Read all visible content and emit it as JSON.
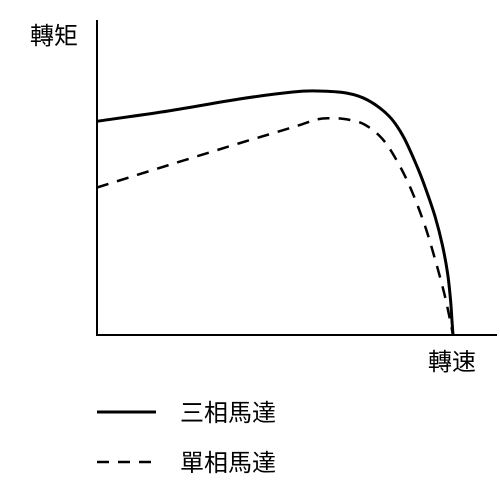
{
  "chart_data": {
    "type": "line",
    "xlabel": "轉速",
    "ylabel": "轉矩",
    "xlim": [
      0,
      100
    ],
    "ylim": [
      0,
      100
    ],
    "grid": false,
    "legend_position": "bottom-left",
    "series": [
      {
        "name": "三相馬達",
        "style": "solid",
        "color": "#000000",
        "x": [
          0,
          20,
          40,
          55,
          62,
          70,
          76,
          82,
          86,
          90,
          92.5,
          95,
          97,
          98.5,
          99.3,
          99.7,
          100
        ],
        "y": [
          85.5,
          89.6,
          94.4,
          97.2,
          97.6,
          96.8,
          94.0,
          87.6,
          79.5,
          67.1,
          57.8,
          47.2,
          36.1,
          24.5,
          14.1,
          6.0,
          0
        ]
      },
      {
        "name": "單相馬達",
        "style": "dashed",
        "color": "#000000",
        "x": [
          0,
          20,
          40,
          55,
          62,
          66,
          70,
          75,
          80,
          84,
          88,
          92,
          95,
          97.5,
          99,
          100
        ],
        "y": [
          59.0,
          67.9,
          76.7,
          83.1,
          86.3,
          86.7,
          86.3,
          84.3,
          78.7,
          70.3,
          59.0,
          44.2,
          30.1,
          16.9,
          7.2,
          0
        ]
      }
    ]
  }
}
